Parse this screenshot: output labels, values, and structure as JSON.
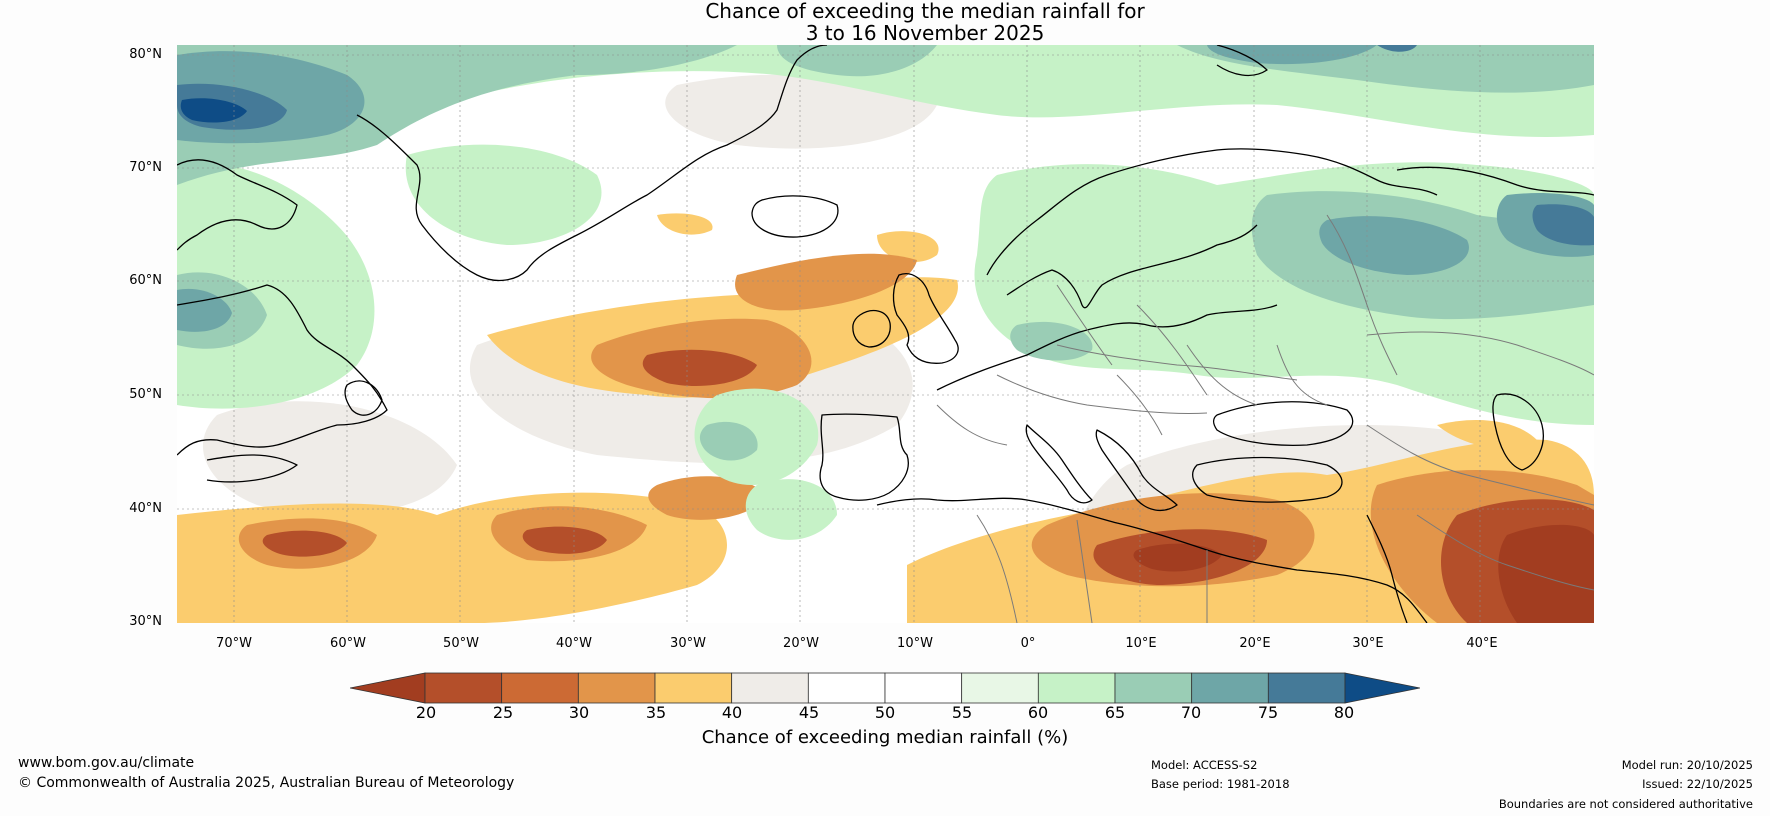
{
  "title": {
    "line1": "Chance of exceeding the median rainfall for",
    "line2": "3 to 16 November 2025"
  },
  "map": {
    "lat_labels": [
      "80°N",
      "70°N",
      "60°N",
      "50°N",
      "40°N",
      "30°N"
    ],
    "lon_labels": [
      "70°W",
      "60°W",
      "50°W",
      "40°W",
      "30°W",
      "20°W",
      "10°W",
      "0°",
      "10°E",
      "20°E",
      "30°E",
      "40°E"
    ],
    "extent": {
      "lon_min": -75,
      "lon_max": 50,
      "lat_min": 30,
      "lat_max": 81
    }
  },
  "colorbar": {
    "ticks": [
      "20",
      "25",
      "30",
      "35",
      "40",
      "45",
      "50",
      "55",
      "60",
      "65",
      "70",
      "75",
      "80"
    ],
    "colors": [
      "#a23d20",
      "#b44f2a",
      "#cc6a34",
      "#e2954a",
      "#fbcc6e",
      "#efece8",
      "#ffffff",
      "#ffffff",
      "#e8f7e6",
      "#c6f2c7",
      "#9acdb5",
      "#6ea6a7",
      "#457a98",
      "#0e4c86"
    ],
    "label": "Chance of exceeding median rainfall (%)"
  },
  "footer": {
    "website": "www.bom.gov.au/climate",
    "copyright": "© Commonwealth of Australia 2025, Australian Bureau of Meteorology",
    "model": "Model: ACCESS-S2",
    "base_period": "Base period: 1981-2018",
    "model_run": "Model run: 20/10/2025",
    "issued": "Issued: 22/10/2025",
    "disclaimer": "Boundaries are not considered authoritative"
  }
}
